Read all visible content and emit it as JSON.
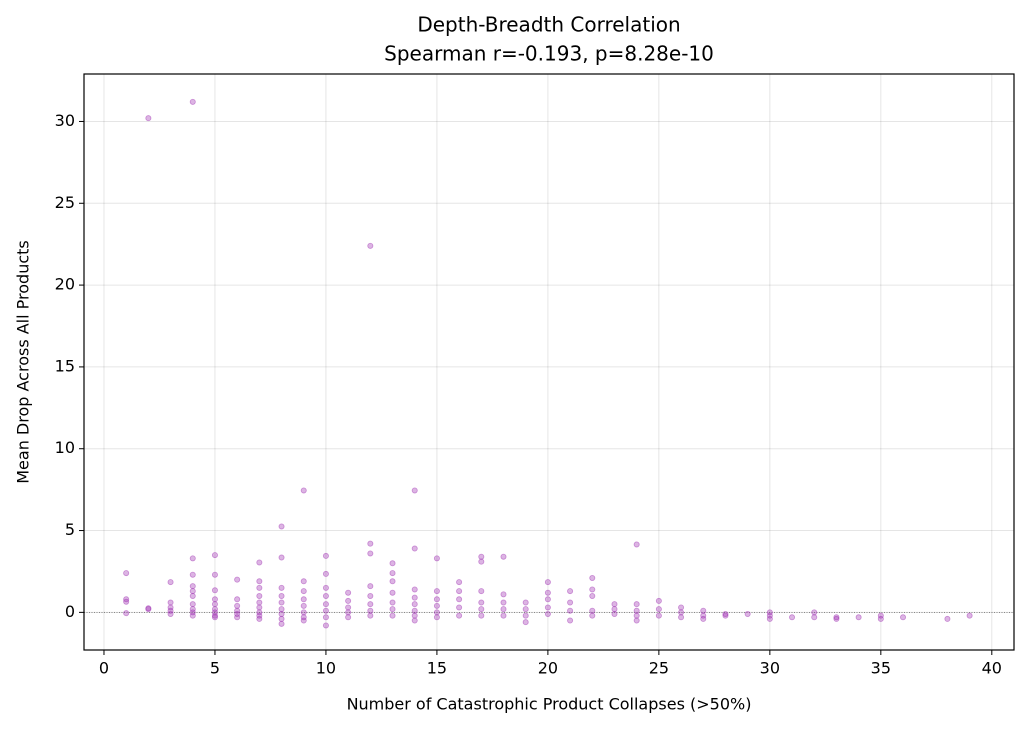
{
  "chart_data": {
    "type": "scatter",
    "title": "Depth-Breadth Correlation",
    "subtitle": "Spearman r=-0.193, p=8.28e-10",
    "x_label": "Number of Catastrophic Product Collapses (>50%)",
    "y_label": "Mean Drop Across All Products",
    "xlim": [
      -0.9,
      41.0
    ],
    "ylim": [
      -2.3,
      32.9
    ],
    "xticks": [
      0,
      5,
      10,
      15,
      20,
      25,
      30,
      35,
      40
    ],
    "yticks": [
      0,
      5,
      10,
      15,
      20,
      25,
      30
    ],
    "grid": true,
    "hline": 0,
    "series": [
      {
        "color": "#9c27b0",
        "x": [
          1,
          1,
          1,
          1,
          2,
          2,
          2,
          3,
          3,
          3,
          3,
          3,
          4,
          4,
          4,
          4,
          4,
          4,
          4,
          4,
          4,
          4,
          5,
          5,
          5,
          5,
          5,
          5,
          5,
          5,
          5,
          6,
          6,
          6,
          6,
          6,
          6,
          7,
          7,
          7,
          7,
          7,
          7,
          7,
          7,
          7,
          8,
          8,
          8,
          8,
          8,
          8,
          8,
          8,
          8,
          9,
          9,
          9,
          9,
          9,
          9,
          9,
          9,
          10,
          10,
          10,
          10,
          10,
          10,
          10,
          10,
          11,
          11,
          11,
          11,
          11,
          12,
          12,
          12,
          12,
          12,
          12,
          12,
          12,
          13,
          13,
          13,
          13,
          13,
          13,
          13,
          14,
          14,
          14,
          14,
          14,
          14,
          14,
          14,
          15,
          15,
          15,
          15,
          15,
          15,
          16,
          16,
          16,
          16,
          16,
          17,
          17,
          17,
          17,
          17,
          17,
          18,
          18,
          18,
          18,
          18,
          19,
          19,
          19,
          19,
          20,
          20,
          20,
          20,
          20,
          21,
          21,
          21,
          21,
          22,
          22,
          22,
          22,
          22,
          23,
          23,
          23,
          24,
          24,
          24,
          24,
          24,
          25,
          25,
          25,
          26,
          26,
          26,
          27,
          27,
          27,
          28,
          28,
          29,
          30,
          30,
          30,
          31,
          32,
          32,
          33,
          33,
          34,
          35,
          35,
          36,
          38,
          39
        ],
        "y": [
          2.4,
          0.8,
          0.65,
          -0.05,
          30.2,
          0.25,
          0.2,
          1.85,
          0.6,
          0.3,
          0.1,
          -0.1,
          31.2,
          3.3,
          2.3,
          1.6,
          1.3,
          1.0,
          0.5,
          0.2,
          0,
          -0.2,
          3.5,
          2.3,
          1.35,
          0.8,
          0.5,
          0.2,
          0,
          -0.2,
          -0.3,
          2.0,
          0.8,
          0.4,
          0.1,
          -0.1,
          -0.3,
          3.05,
          1.9,
          1.5,
          1.0,
          0.6,
          0.3,
          0,
          -0.2,
          -0.4,
          5.25,
          3.35,
          1.5,
          1.0,
          0.6,
          0.2,
          -0.1,
          -0.4,
          -0.7,
          7.45,
          1.9,
          1.3,
          0.8,
          0.4,
          0,
          -0.3,
          -0.5,
          3.45,
          2.35,
          1.5,
          1.0,
          0.5,
          0.1,
          -0.3,
          -0.8,
          1.2,
          0.7,
          0.3,
          0,
          -0.3,
          22.4,
          4.2,
          3.6,
          1.6,
          1.0,
          0.5,
          0.1,
          -0.2,
          3.0,
          2.4,
          1.9,
          1.2,
          0.6,
          0.2,
          -0.2,
          7.45,
          3.9,
          1.4,
          0.9,
          0.5,
          0.1,
          -0.2,
          -0.5,
          3.3,
          1.3,
          0.8,
          0.4,
          0,
          -0.3,
          1.85,
          1.3,
          0.8,
          0.3,
          -0.2,
          3.4,
          3.1,
          1.3,
          0.6,
          0.2,
          -0.2,
          3.4,
          1.1,
          0.6,
          0.2,
          -0.2,
          0.6,
          0.2,
          -0.2,
          -0.6,
          1.85,
          1.2,
          0.8,
          0.3,
          -0.1,
          1.3,
          0.6,
          0.1,
          -0.5,
          2.1,
          1.4,
          1.0,
          0.1,
          -0.2,
          0.5,
          0.2,
          -0.1,
          4.15,
          0.5,
          0.1,
          -0.2,
          -0.5,
          0.7,
          0.2,
          -0.2,
          0.3,
          0,
          -0.3,
          0.1,
          -0.2,
          -0.4,
          -0.1,
          -0.2,
          -0.1,
          0,
          -0.2,
          -0.4,
          -0.3,
          0,
          -0.3,
          -0.3,
          -0.4,
          -0.3,
          -0.2,
          -0.4,
          -0.3,
          -0.4,
          -0.2
        ]
      }
    ]
  }
}
